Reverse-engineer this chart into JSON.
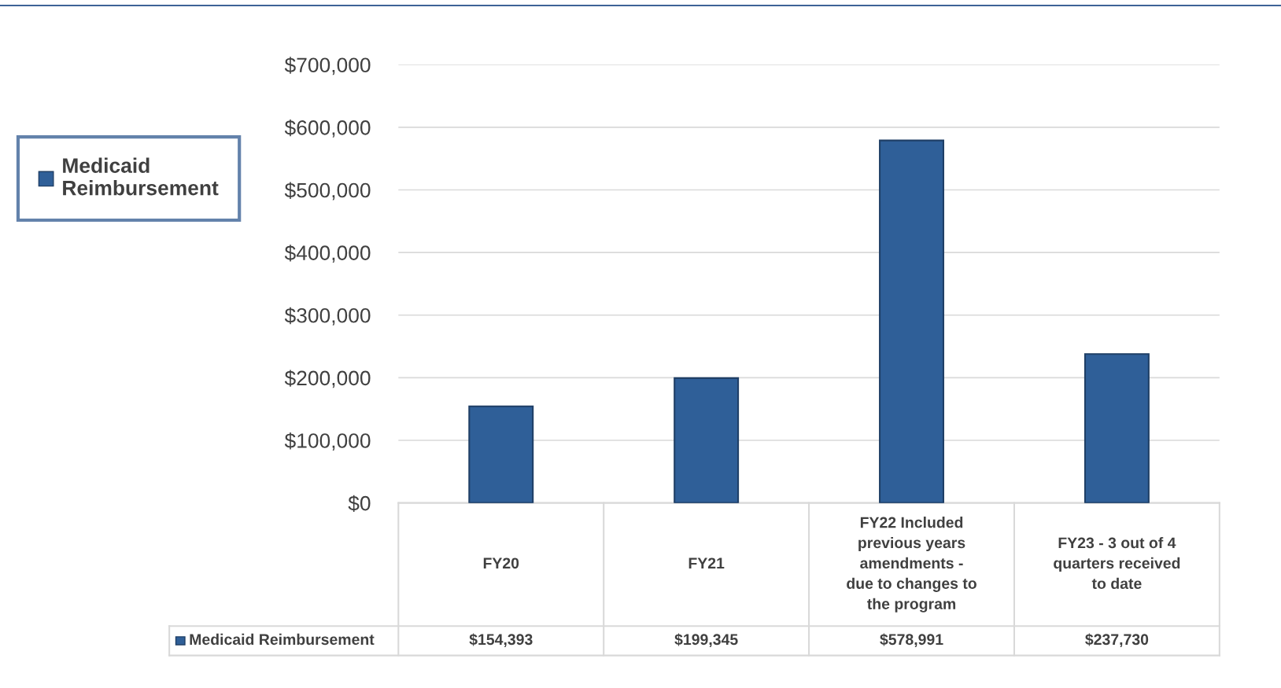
{
  "chart_data": {
    "type": "bar",
    "categories": [
      "FY20",
      "FY21",
      "FY22 Included\nprevious years\namendments -\ndue to changes to\nthe program",
      "FY23 - 3 out of 4\nquarters received\nto date"
    ],
    "series": [
      {
        "name": "Medicaid Reimbursement",
        "color": "#2f5f98",
        "values": [
          154393,
          199345,
          578991,
          237730
        ],
        "value_labels": [
          "$154,393",
          "$199,345",
          "$578,991",
          "$237,730"
        ]
      }
    ],
    "ylim": [
      0,
      700000
    ],
    "yticks": [
      {
        "value": 0,
        "label": "$0"
      },
      {
        "value": 100000,
        "label": "$100,000"
      },
      {
        "value": 200000,
        "label": "$200,000"
      },
      {
        "value": 300000,
        "label": "$300,000"
      },
      {
        "value": 400000,
        "label": "$400,000"
      },
      {
        "value": 500000,
        "label": "$500,000"
      },
      {
        "value": 600000,
        "label": "$600,000"
      },
      {
        "value": 700000,
        "label": "$700,000"
      }
    ],
    "grid": "y",
    "legend": "left"
  }
}
